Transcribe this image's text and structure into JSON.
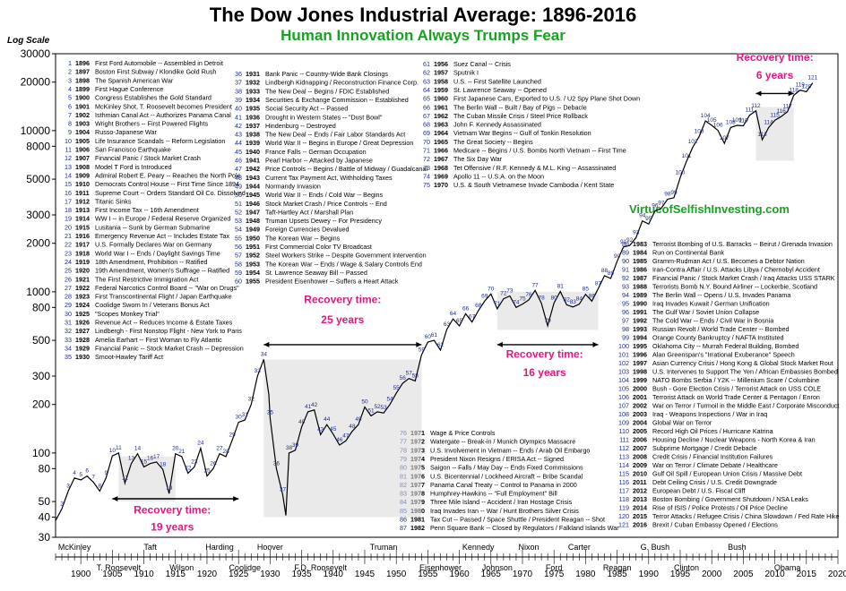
{
  "title": "The Dow Jones Industrial Average: 1896-2016",
  "subtitle": "Human Innovation Always Trumps Fear",
  "axis_note": "Log Scale",
  "website": "VirtueofSelfishInvesting.com",
  "chart_data": {
    "type": "line",
    "title": "The Dow Jones Industrial Average: 1896-2016",
    "subtitle": "Human Innovation Always Trumps Fear",
    "ylabel": "Log Scale",
    "yscale": "log",
    "ylim": [
      30,
      30000
    ],
    "xlim": [
      1896,
      2020
    ],
    "yticks": [
      "30000",
      "20000",
      "10000",
      "8000",
      "5000",
      "3000",
      "2000",
      "1000",
      "800",
      "500",
      "300",
      "200",
      "100",
      "80",
      "50",
      "40",
      "30"
    ],
    "ytick_values": [
      30000,
      20000,
      10000,
      8000,
      5000,
      3000,
      2000,
      1000,
      800,
      500,
      300,
      200,
      100,
      80,
      50,
      40,
      30
    ],
    "xticks": [
      "1900",
      "1905",
      "1910",
      "1915",
      "1920",
      "1925",
      "1930",
      "1935",
      "1940",
      "1945",
      "1950",
      "1955",
      "1960",
      "1965",
      "1970",
      "1975",
      "1980",
      "1985",
      "1990",
      "1995",
      "2000",
      "2005",
      "2010",
      "2015",
      "2020"
    ],
    "xtick_values": [
      1900,
      1905,
      1910,
      1915,
      1920,
      1925,
      1930,
      1935,
      1940,
      1945,
      1950,
      1955,
      1960,
      1965,
      1970,
      1975,
      1980,
      1985,
      1990,
      1995,
      2000,
      2005,
      2010,
      2015,
      2020
    ],
    "series": [
      {
        "x": [
          1896,
          1897,
          1898,
          1899,
          1900,
          1901,
          1902,
          1903,
          1904,
          1905,
          1906,
          1907,
          1908,
          1909,
          1910,
          1911,
          1912,
          1913,
          1914,
          1915,
          1916,
          1917,
          1918,
          1919,
          1920,
          1921,
          1922,
          1923,
          1924,
          1925,
          1926,
          1927,
          1928,
          1929,
          1929.8,
          1930,
          1931,
          1932,
          1932.5,
          1933,
          1934,
          1935,
          1936,
          1937,
          1938,
          1939,
          1940,
          1941,
          1942,
          1943,
          1944,
          1945,
          1946,
          1947,
          1948,
          1949,
          1950,
          1951,
          1952,
          1953,
          1954,
          1955,
          1956,
          1957,
          1958,
          1959,
          1960,
          1961,
          1962,
          1963,
          1964,
          1965,
          1966,
          1967,
          1968,
          1969,
          1970,
          1971,
          1972,
          1973,
          1974,
          1975,
          1976,
          1977,
          1978,
          1979,
          1980,
          1981,
          1982,
          1983,
          1984,
          1985,
          1986,
          1987,
          1988,
          1989,
          1990,
          1991,
          1992,
          1993,
          1994,
          1995,
          1996,
          1997,
          1998,
          1999,
          2000,
          2001,
          2002,
          2003,
          2004,
          2005,
          2006,
          2007,
          2008,
          2009,
          2010,
          2011,
          2012,
          2013,
          2014,
          2015,
          2016
        ],
        "values": [
          38,
          45,
          58,
          70,
          68,
          72,
          66,
          58,
          70,
          96,
          100,
          65,
          86,
          99,
          82,
          86,
          88,
          79,
          56,
          99,
          95,
          75,
          82,
          107,
          72,
          80,
          99,
          95,
          120,
          155,
          160,
          200,
          300,
          381,
          230,
          165,
          80,
          55,
          41,
          100,
          104,
          145,
          180,
          185,
          130,
          150,
          131,
          112,
          119,
          136,
          150,
          193,
          170,
          180,
          177,
          200,
          235,
          270,
          290,
          280,
          405,
          488,
          500,
          435,
          583,
          679,
          615,
          731,
          650,
          763,
          874,
          969,
          785,
          905,
          943,
          800,
          839,
          890,
          1020,
          850,
          616,
          852,
          1005,
          831,
          805,
          838,
          964,
          875,
          1046,
          1259,
          1211,
          1546,
          1896,
          1939,
          2168,
          2753,
          2633,
          3168,
          3301,
          3754,
          3834,
          5117,
          6448,
          7908,
          9181,
          11497,
          10787,
          10021,
          8342,
          10453,
          10783,
          10717,
          12463,
          13264,
          8776,
          10428,
          11577,
          12217,
          13104,
          16576,
          17823,
          17425,
          19762
        ]
      }
    ],
    "annotations": [
      {
        "label": "Recovery time: 19 years"
      },
      {
        "label": "Recovery time: 25 years"
      },
      {
        "label": "Recovery time: 16 years"
      },
      {
        "label": "Recovery time: 6 years"
      }
    ],
    "presidents": [
      "McKinley",
      "T. Roosevelt",
      "Taft",
      "Wilson",
      "Harding",
      "Coolidge",
      "Hoover",
      "F.D. Roosevelt",
      "Truman",
      "Eisenhower",
      "Kennedy",
      "Johnson",
      "Nixon",
      "Ford",
      "Carter",
      "Reagan",
      "G. Bush",
      "Clinton",
      "Bush",
      "Obama"
    ],
    "event_columns": [
      [
        [
          "1",
          "1896",
          "First Ford Automobile -- Assembled in Detroit"
        ],
        [
          "2",
          "1897",
          "Boston First Subway / Klondike Gold Rush"
        ],
        [
          "3",
          "1898",
          "The Spanish American War"
        ],
        [
          "4",
          "1899",
          "First Hague Conference"
        ],
        [
          "5",
          "1900",
          "Congress Establishes the Gold Standard"
        ],
        [
          "6",
          "1901",
          "McKinley Shot, T. Roosevelt becomes President"
        ],
        [
          "7",
          "1902",
          "Isthmian Canal Act -- Authorizes Panama Canal"
        ],
        [
          "8",
          "1903",
          "Wright Brothers -- First Powered Flights"
        ],
        [
          "9",
          "1904",
          "Russo-Japanese War"
        ],
        [
          "10",
          "1905",
          "Life Insurance Scandals -- Reform Legislation"
        ],
        [
          "11",
          "1906",
          "San Francisco Earthquake"
        ],
        [
          "12",
          "1907",
          "Financial Panic / Stock Market Crash"
        ],
        [
          "13",
          "1908",
          "Model T Ford is Introduced"
        ],
        [
          "14",
          "1909",
          "Admiral Robert E. Peary -- Reaches the North Pole"
        ],
        [
          "15",
          "1910",
          "Democrats Control House -- First Time Since 1894"
        ],
        [
          "16",
          "1911",
          "Supreme Court -- Orders Standard Oil Co. Dissolved"
        ],
        [
          "17",
          "1912",
          "Titanic Sinks"
        ],
        [
          "18",
          "1913",
          "First Income Tax -- 16th Amendment"
        ],
        [
          "19",
          "1914",
          "WW I -- in Europe / Federal Reserve Organized"
        ],
        [
          "20",
          "1915",
          "Lusitania -- Sunk by German Submarine"
        ],
        [
          "21",
          "1916",
          "Emergency Revenue Act -- Includes Estate Tax"
        ],
        [
          "22",
          "1917",
          "U.S. Formally Declares War on Germany"
        ],
        [
          "23",
          "1918",
          "World War I -- Ends / Daylight Savings Time"
        ],
        [
          "24",
          "1919",
          "18th Amendment, Prohibition -- Ratified"
        ],
        [
          "25",
          "1920",
          "19th Amendment, Women's Suffrage -- Ratified"
        ],
        [
          "26",
          "1921",
          "The First Restrictive Immigration Act"
        ],
        [
          "27",
          "1922",
          "Federal Narcotics Control Board -- \"War on Drugs\""
        ],
        [
          "28",
          "1923",
          "First Transcontinental Flight / Japan Earthquake"
        ],
        [
          "29",
          "1924",
          "Coolidge Sworn In / Veterans Bonus Act"
        ],
        [
          "30",
          "1925",
          "\"Scopes Monkey Trial\""
        ],
        [
          "31",
          "1926",
          "Revenue Act -- Reduces Income & Estate Taxes"
        ],
        [
          "32",
          "1927",
          "Lindbergh - First Nonstop Flight - New York to Paris"
        ],
        [
          "33",
          "1928",
          "Amelia Earhart -- First Woman to Fly Atlantic"
        ],
        [
          "34",
          "1929",
          "Financial Panic -- Stock Market Crash -- Depression"
        ],
        [
          "35",
          "1930",
          "Smoot-Hawley Tariff Act"
        ]
      ],
      [
        [
          "36",
          "1931",
          "Bank Panic -- Country-Wide Bank Closings"
        ],
        [
          "37",
          "1932",
          "Lindbergh Kidnapping / Reconstruction Finance Corp."
        ],
        [
          "38",
          "1933",
          "The New Deal -- Begins / FDIC Established"
        ],
        [
          "39",
          "1934",
          "Securities & Exchange Commission -- Established"
        ],
        [
          "40",
          "1935",
          "Social Security Act -- Passed"
        ],
        [
          "41",
          "1936",
          "Drought in Western States -- \"Dust Bowl\""
        ],
        [
          "42",
          "1937",
          "Hindenburg -- Destroyed"
        ],
        [
          "43",
          "1938",
          "The New Deal -- Ends / Fair Labor Standards Act"
        ],
        [
          "44",
          "1939",
          "World War II -- Begins in Europe / Great Depression"
        ],
        [
          "45",
          "1940",
          "France Falls -- German Occupation"
        ],
        [
          "46",
          "1941",
          "Pearl Harbor -- Attacked by Japanese"
        ],
        [
          "47",
          "1942",
          "Price Controls -- Begins / Battle of Midway / Guadalcanal"
        ],
        [
          "48",
          "1943",
          "Current Tax Payment Act, Withholding Taxes"
        ],
        [
          "49",
          "1944",
          "Normandy Invasion"
        ],
        [
          "50",
          "1945",
          "World War II -- Ends / Cold War -- Begins"
        ],
        [
          "51",
          "1946",
          "Stock Market Crash / Price Controls -- End"
        ],
        [
          "52",
          "1947",
          "Taft-Hartley Act / Marshall Plan"
        ],
        [
          "53",
          "1948",
          "Truman Upsets Dewey -- For Presidency"
        ],
        [
          "54",
          "1949",
          "Foreign Currencies Devalued"
        ],
        [
          "55",
          "1950",
          "The Korean War -- Begins"
        ],
        [
          "56",
          "1951",
          "First Commercial Color TV Broadcast"
        ],
        [
          "57",
          "1952",
          "Steel Workers Strike -- Despite Government Intervention"
        ],
        [
          "58",
          "1953",
          "The Korean War -- Ends / Wage & Salary Controls End"
        ],
        [
          "59",
          "1954",
          "St. Lawrence Seaway Bill -- Passed"
        ],
        [
          "60",
          "1955",
          "President Eisenhower -- Suffers a Heart Attack"
        ]
      ],
      [
        [
          "61",
          "1956",
          "Suez Canal -- Crisis"
        ],
        [
          "62",
          "1957",
          "Sputnik I"
        ],
        [
          "63",
          "1958",
          "U.S. -- First Satellite Launched"
        ],
        [
          "64",
          "1959",
          "St. Lawrence Seaway -- Opened"
        ],
        [
          "65",
          "1960",
          "First Japanese Cars, Exported to U.S. / U2 Spy Plane Shot Down"
        ],
        [
          "66",
          "1961",
          "The Berlin Wall -- Built / Bay of Pigs -- Debacle"
        ],
        [
          "67",
          "1962",
          "The Cuban Missile Crisis / Steel Price Rollback"
        ],
        [
          "68",
          "1963",
          "John F. Kennedy Assassinated"
        ],
        [
          "69",
          "1964",
          "Vietnam War Begins -- Gulf of Tonkin Resolution"
        ],
        [
          "70",
          "1965",
          "The Great Society -- Begins"
        ],
        [
          "71",
          "1966",
          "Medicare -- Begins / U.S. Bombs North Vietnam -- First Time"
        ],
        [
          "72",
          "1967",
          "The Six Day War"
        ],
        [
          "73",
          "1968",
          "Tet Offensive / R.F. Kennedy & M.L. King -- Assassinated"
        ],
        [
          "74",
          "1969",
          "Apollo 11 -- U.S.A. on the Moon"
        ],
        [
          "75",
          "1970",
          "U.S. & South Vietnamese Invade Cambodia / Kent State"
        ]
      ],
      [
        [
          "76",
          "1971",
          "Wage & Price Controls"
        ],
        [
          "77",
          "1972",
          "Watergate -- Break-in / Munich Olympics Massacre"
        ],
        [
          "78",
          "1973",
          "U.S. Involvement in Vietnam -- Ends / Arab Oil Embargo"
        ],
        [
          "79",
          "1974",
          "President Nixon Resigns / ERISA Act -- Signed"
        ],
        [
          "80",
          "1975",
          "Saigon -- Falls / May Day -- Ends Fixed Commissions"
        ],
        [
          "81",
          "1976",
          "U.S. Bicentennial / Lockheed Aircraft -- Bribe Scandal"
        ],
        [
          "82",
          "1977",
          "Panama Canal Treaty -- Control to Panama in 2000"
        ],
        [
          "83",
          "1978",
          "Humphrey-Hawkins -- \"Full Employment\" Bill"
        ],
        [
          "84",
          "1979",
          "Three Mile Island -- Accident / Iran Hostage Crisis"
        ],
        [
          "85",
          "1980",
          "Iraq Invades Iran -- War / Hunt Brothers Silver Crisis"
        ],
        [
          "86",
          "1981",
          "Tax Cut -- Passed / Space Shuttle / President Reagan -- Shot"
        ],
        [
          "87",
          "1982",
          "Penn Square Bank -- Closed by Regulators / Falkland Islands War"
        ]
      ],
      [
        [
          "88",
          "1983",
          "Terrorist Bombing of U.S. Barracks -- Beirut / Grenada Invasion"
        ],
        [
          "89",
          "1984",
          "Run on Continental Bank"
        ],
        [
          "90",
          "1985",
          "Gramm-Rudman Act / U.S. Becomes a Debtor Nation"
        ],
        [
          "91",
          "1986",
          "Iran-Contra Affair / U.S. Attacks Libya / Chernobyl Accident"
        ],
        [
          "92",
          "1987",
          "Financial Panic / Stock Market Crash / Iraq Attacks USS STARK"
        ],
        [
          "93",
          "1988",
          "Terrorists Bomb N.Y. Bound Airliner -- Lockerbie, Scotland"
        ],
        [
          "94",
          "1989",
          "The Berlin Wall -- Opens / U.S. Invades Panama"
        ],
        [
          "95",
          "1990",
          "Iraq Invades Kuwait / German Unification"
        ],
        [
          "96",
          "1991",
          "The Gulf War / Soviet Union Collapse"
        ],
        [
          "97",
          "1992",
          "The Cold War -- Ends / Civil War in Bosnia"
        ],
        [
          "98",
          "1993",
          "Russian Revolt / World Trade Center -- Bombed"
        ],
        [
          "99",
          "1994",
          "Orange County Bankruptcy / NAFTA Instituted"
        ],
        [
          "100",
          "1995",
          "Oklahoma City -- Murrah Federal Building, Bombed"
        ],
        [
          "101",
          "1996",
          "Alan Greenspan's \"Irrational Exuberance\" Speech"
        ],
        [
          "102",
          "1997",
          "Asian Currency Crisis / Hong Kong & Global Stock Market Rout"
        ],
        [
          "103",
          "1998",
          "U.S. Intervenes to Support The Yen / African Embassies Bombed"
        ],
        [
          "104",
          "1999",
          "NATO Bombs Serbia / Y2K -- Millenium Scare / Columbine"
        ],
        [
          "105",
          "2000",
          "Bush - Gore Election Crisis / Terrorist Attack on USS COLE"
        ],
        [
          "106",
          "2001",
          "Terrorist Attack on World Trade Center & Pentagon / Enron"
        ],
        [
          "107",
          "2002",
          "War on Terror / Turmoil in the Middle East / Corporate Misconduct"
        ],
        [
          "108",
          "2003",
          "Iraq - Weapons Inspections / War in Iraq"
        ],
        [
          "109",
          "2004",
          "Global War on Terror"
        ],
        [
          "110",
          "2005",
          "Record High Oil Prices / Hurricane Katrina"
        ],
        [
          "111",
          "2006",
          "Housing Decline / Nuclear Weapons - North Korea & Iran"
        ],
        [
          "112",
          "2007",
          "Subprime Mortgage / Credit Debacle"
        ],
        [
          "113",
          "2008",
          "Credit Crisis / Financial Institution Failures"
        ],
        [
          "114",
          "2009",
          "War on Terror / Climate Debate / Healthcare"
        ],
        [
          "115",
          "2010",
          "Gulf Oil Spill / European Union Crisis / Massive Debt"
        ],
        [
          "116",
          "2011",
          "Debt Ceiling Crisis / U.S. Credit Downgrade"
        ],
        [
          "117",
          "2012",
          "European Debt / U.S. Fiscal Cliff"
        ],
        [
          "118",
          "2013",
          "Boston Bombing / Government Shutdown / NSA Leaks"
        ],
        [
          "119",
          "2014",
          "Rise of ISIS / Police Protests / Oil Price Decline"
        ],
        [
          "120",
          "2015",
          "Terror Attacks / Refugee Crisis / China Slowdown / Fed Rate Hike"
        ],
        [
          "121",
          "2016",
          "Brexit / Cuban Embassy Opened / Elections"
        ]
      ]
    ]
  }
}
